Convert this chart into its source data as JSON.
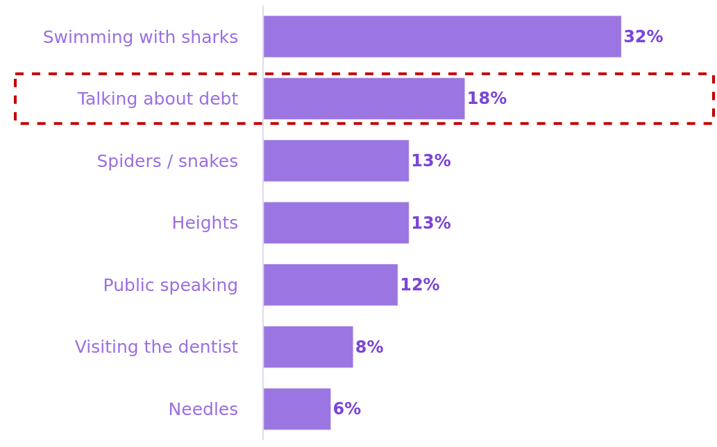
{
  "chart_data": {
    "type": "bar",
    "orientation": "horizontal",
    "categories": [
      "Swimming with sharks",
      "Talking about debt",
      "Spiders / snakes",
      "Heights",
      "Public speaking",
      "Visiting the dentist",
      "Needles"
    ],
    "values": [
      32,
      18,
      13,
      13,
      12,
      8,
      6
    ],
    "value_labels": [
      "32%",
      "18%",
      "13%",
      "13%",
      "12%",
      "8%",
      "6%"
    ],
    "color": "#9b75e2",
    "legend": false
  }
}
